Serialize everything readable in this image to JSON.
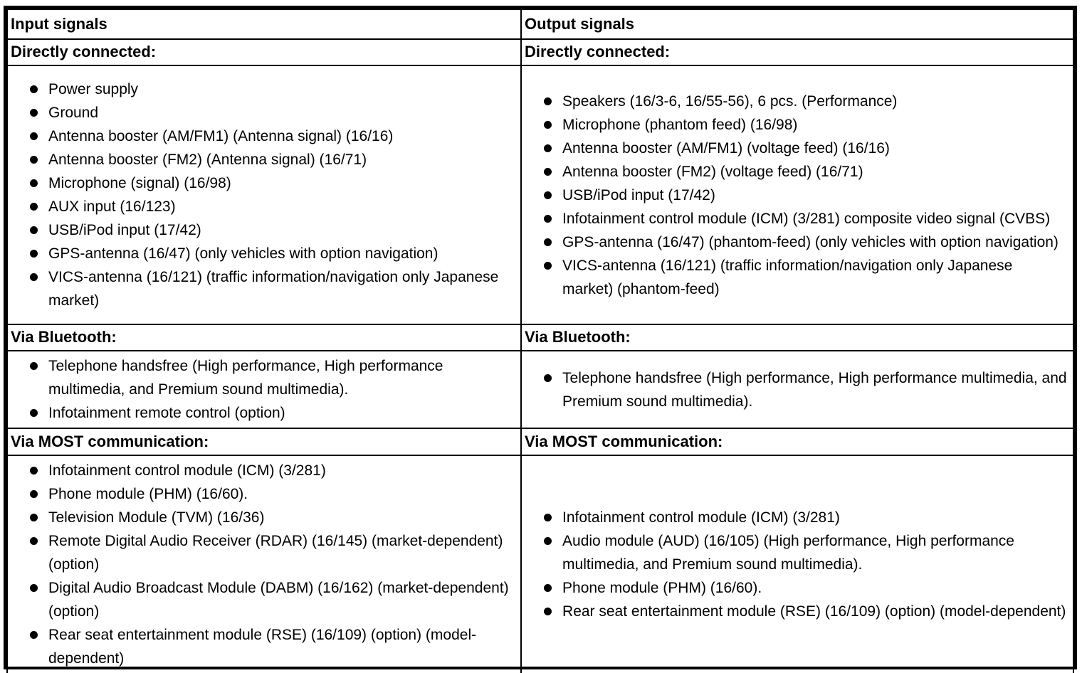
{
  "colors": {
    "border": "#000000",
    "text": "#000000",
    "background": "#ffffff"
  },
  "table": {
    "input": {
      "header": "Input signals",
      "directly_connected_label": "Directly connected:",
      "directly_connected_items": [
        "Power supply",
        "Ground",
        "Antenna booster (AM/FM1) (Antenna signal) (16/16)",
        "Antenna booster (FM2) (Antenna signal) (16/71)",
        "Microphone (signal) (16/98)",
        "AUX input (16/123)",
        "USB/iPod input (17/42)",
        "GPS-antenna (16/47) (only vehicles with option navigation)",
        "VICS-antenna (16/121) (traffic information/navigation only Japanese market)"
      ],
      "bluetooth_label": "Via Bluetooth:",
      "bluetooth_items": [
        "Telephone handsfree (High performance, High performance multimedia, and Premium sound multimedia).",
        "Infotainment remote control (option)"
      ],
      "most_label": "Via MOST communication:",
      "most_items": [
        "Infotainment control module (ICM) (3/281)",
        "Phone module (PHM) (16/60).",
        "Television Module (TVM) (16/36)",
        "Remote Digital Audio Receiver (RDAR) (16/145) (market-dependent) (option)",
        "Digital Audio Broadcast Module (DABM) (16/162) (market-dependent) (option)",
        "Rear seat entertainment module (RSE) (16/109) (option) (model-dependent)"
      ]
    },
    "output": {
      "header": "Output signals",
      "directly_connected_label": "Directly connected:",
      "directly_connected_items": [
        "Speakers (16/3-6, 16/55-56), 6 pcs. (Performance)",
        "Microphone (phantom feed) (16/98)",
        "Antenna booster (AM/FM1) (voltage feed) (16/16)",
        "Antenna booster (FM2) (voltage feed) (16/71)",
        "USB/iPod input (17/42)",
        "Infotainment control module (ICM) (3/281) composite video signal (CVBS)",
        "GPS-antenna (16/47) (phantom-feed) (only vehicles with option navigation)",
        "VICS-antenna (16/121) (traffic information/navigation only Japanese market) (phantom-feed)"
      ],
      "bluetooth_label": "Via Bluetooth:",
      "bluetooth_items": [
        "Telephone handsfree (High performance, High performance multimedia, and Premium sound multimedia)."
      ],
      "most_label": "Via MOST communication:",
      "most_items": [
        "Infotainment control module (ICM) (3/281)",
        "Audio module (AUD) (16/105) (High performance, High performance multimedia, and Premium sound multimedia).",
        "Phone module (PHM) (16/60).",
        "Rear seat entertainment module (RSE) (16/109) (option) (model-dependent)"
      ]
    }
  }
}
